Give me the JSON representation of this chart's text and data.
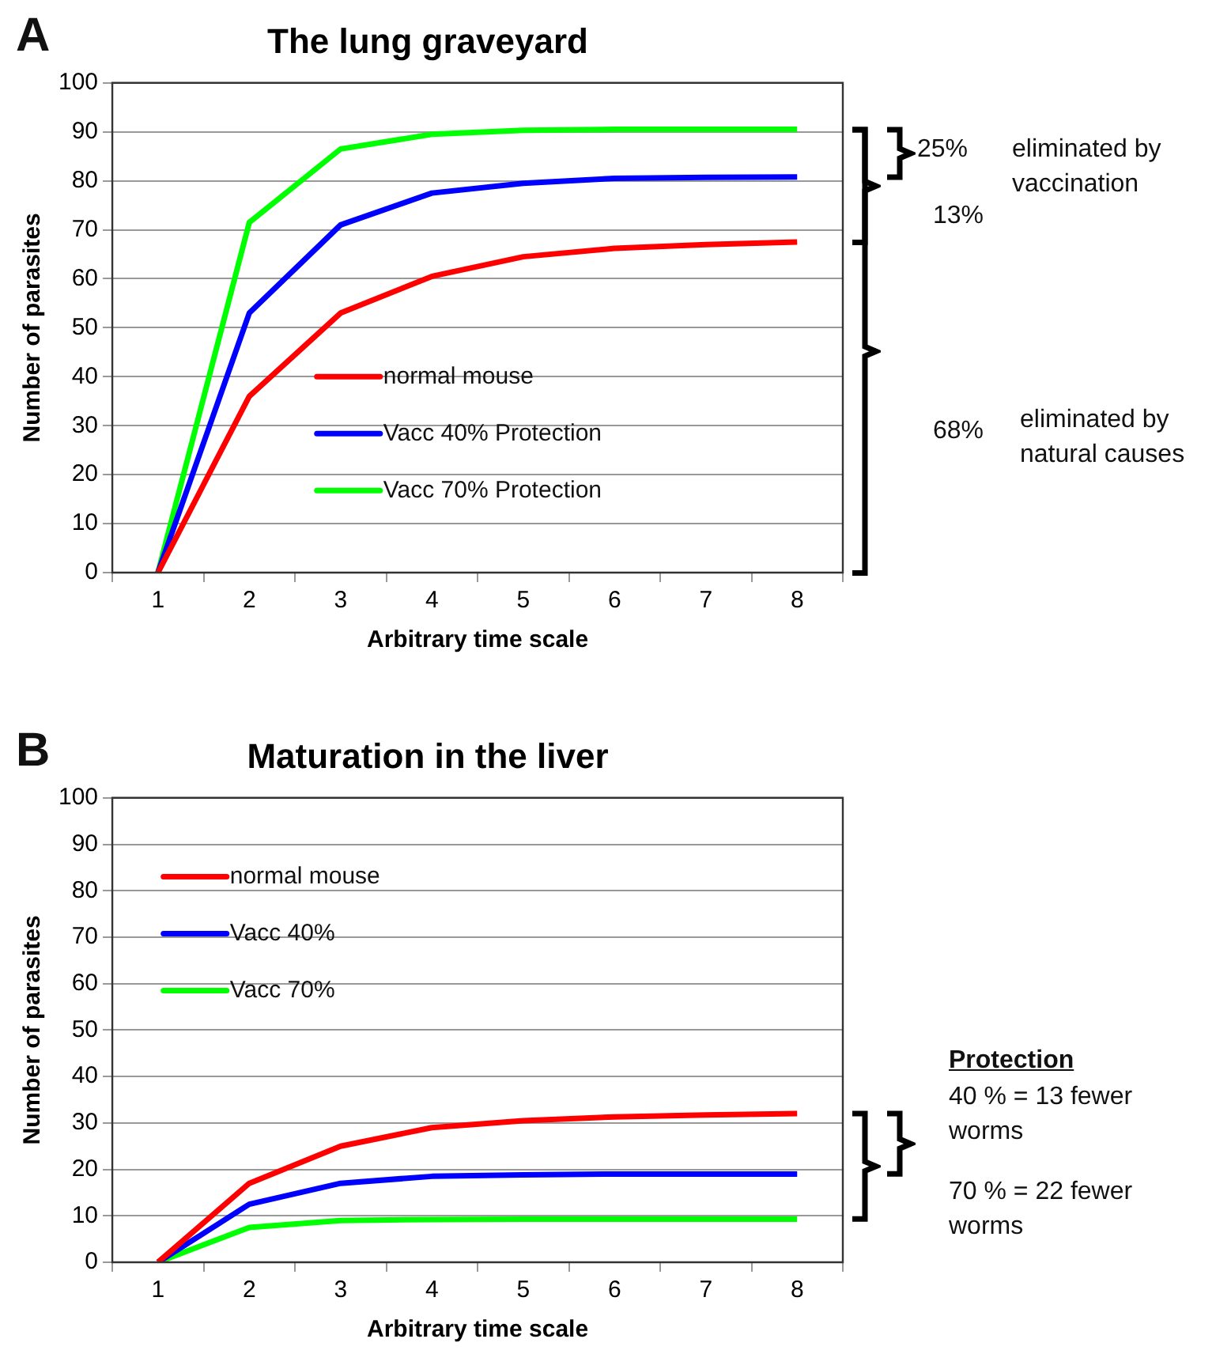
{
  "chart_data": [
    {
      "type": "line",
      "title": "The lung graveyard",
      "xlabel": "Arbitrary time scale",
      "ylabel": "Number of parasites",
      "categories": [
        "1",
        "2",
        "3",
        "4",
        "5",
        "6",
        "7",
        "8"
      ],
      "series": [
        {
          "name": "normal mouse",
          "color": "#ff0000",
          "values": [
            0,
            36,
            53,
            60.5,
            64.5,
            66.2,
            67,
            67.5
          ]
        },
        {
          "name": "Vacc 40% Protection",
          "color": "#0000ff",
          "values": [
            0,
            53,
            71,
            77.5,
            79.5,
            80.5,
            80.7,
            80.8
          ]
        },
        {
          "name": "Vacc 70% Protection",
          "color": "#00ff00",
          "values": [
            0,
            71.5,
            86.5,
            89.5,
            90.3,
            90.5,
            90.5,
            90.5
          ]
        }
      ],
      "ylim": [
        0,
        100
      ],
      "yticks": [
        0,
        10,
        20,
        30,
        40,
        50,
        60,
        70,
        80,
        90,
        100
      ],
      "grid": "y",
      "legend": "center",
      "annotations": [
        "A",
        "25%",
        "eliminated by vaccination",
        "13%",
        "68%",
        "eliminated by natural causes"
      ]
    },
    {
      "type": "line",
      "title": "Maturation in the liver",
      "xlabel": "Arbitrary time scale",
      "ylabel": "Number of parasites",
      "categories": [
        "1",
        "2",
        "3",
        "4",
        "5",
        "6",
        "7",
        "8"
      ],
      "series": [
        {
          "name": "normal mouse",
          "color": "#ff0000",
          "values": [
            0,
            17,
            25,
            29,
            30.5,
            31.3,
            31.7,
            32
          ]
        },
        {
          "name": "Vacc 40%",
          "color": "#0000ff",
          "values": [
            0,
            12.5,
            17,
            18.5,
            18.8,
            19,
            19,
            19
          ]
        },
        {
          "name": "Vacc 70%",
          "color": "#00ff00",
          "values": [
            0,
            7.5,
            9,
            9.2,
            9.3,
            9.3,
            9.3,
            9.3
          ]
        }
      ],
      "ylim": [
        0,
        100
      ],
      "yticks": [
        0,
        10,
        20,
        30,
        40,
        50,
        60,
        70,
        80,
        90,
        100
      ],
      "grid": "y",
      "legend": "top left",
      "annotations": [
        "B",
        "Protection",
        "40 % = 13 fewer worms",
        "70 % = 22 fewer worms"
      ]
    }
  ]
}
